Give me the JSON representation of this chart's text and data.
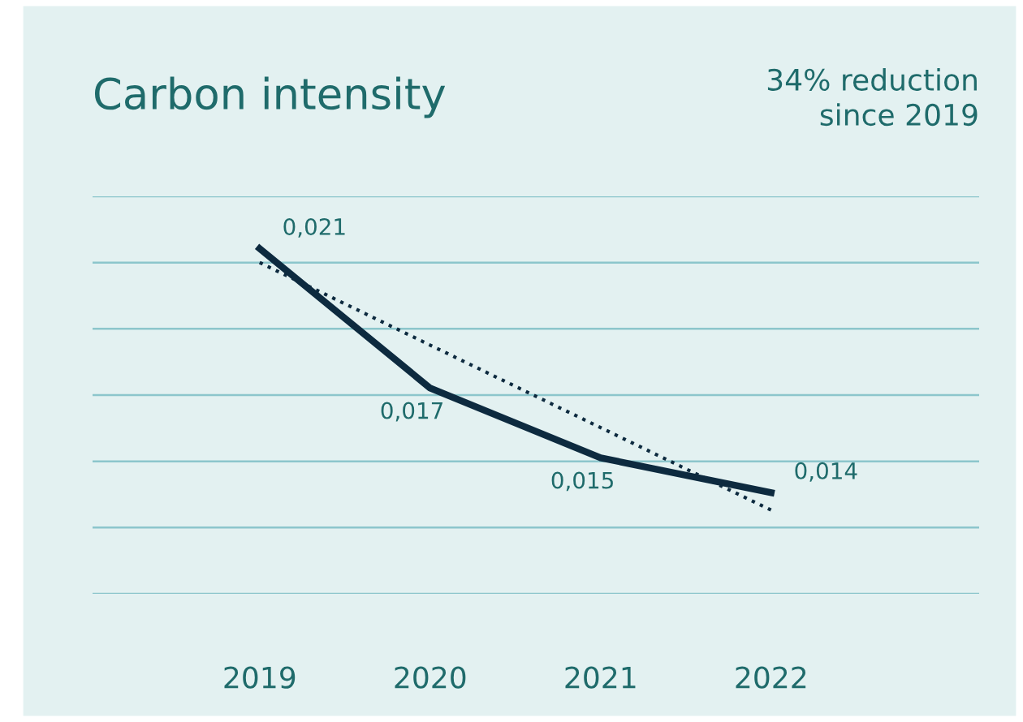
{
  "chart_data": {
    "type": "line",
    "title": "Carbon intensity",
    "annotations": [
      "34% reduction\nsince 2019"
    ],
    "categories": [
      "2019",
      "2020",
      "2021",
      "2022"
    ],
    "series": [
      {
        "color": "#0d2a3f",
        "values": [
          0.021,
          0.017,
          0.015,
          0.014
        ],
        "value_labels": [
          "0,021",
          "0,017",
          "0,015",
          "0,014"
        ],
        "line_style": "solid"
      },
      {
        "type": "line",
        "color": "#0d2a3f",
        "values": [
          0.0206,
          null,
          null,
          0.0135
        ],
        "line_style": "dotted"
      }
    ],
    "ylim": [
      0.0111,
      0.0225
    ],
    "yticks": [
      {
        "value": 0.0111,
        "label": null
      },
      {
        "value": 0.013,
        "label": null
      },
      {
        "value": 0.0149,
        "label": null
      },
      {
        "value": 0.0168,
        "label": null
      },
      {
        "value": 0.0187,
        "label": null
      },
      {
        "value": 0.0206,
        "label": null
      },
      {
        "value": 0.0225,
        "label": null
      }
    ],
    "grid": "y",
    "marker": "none",
    "tick_labels": "x"
  }
}
